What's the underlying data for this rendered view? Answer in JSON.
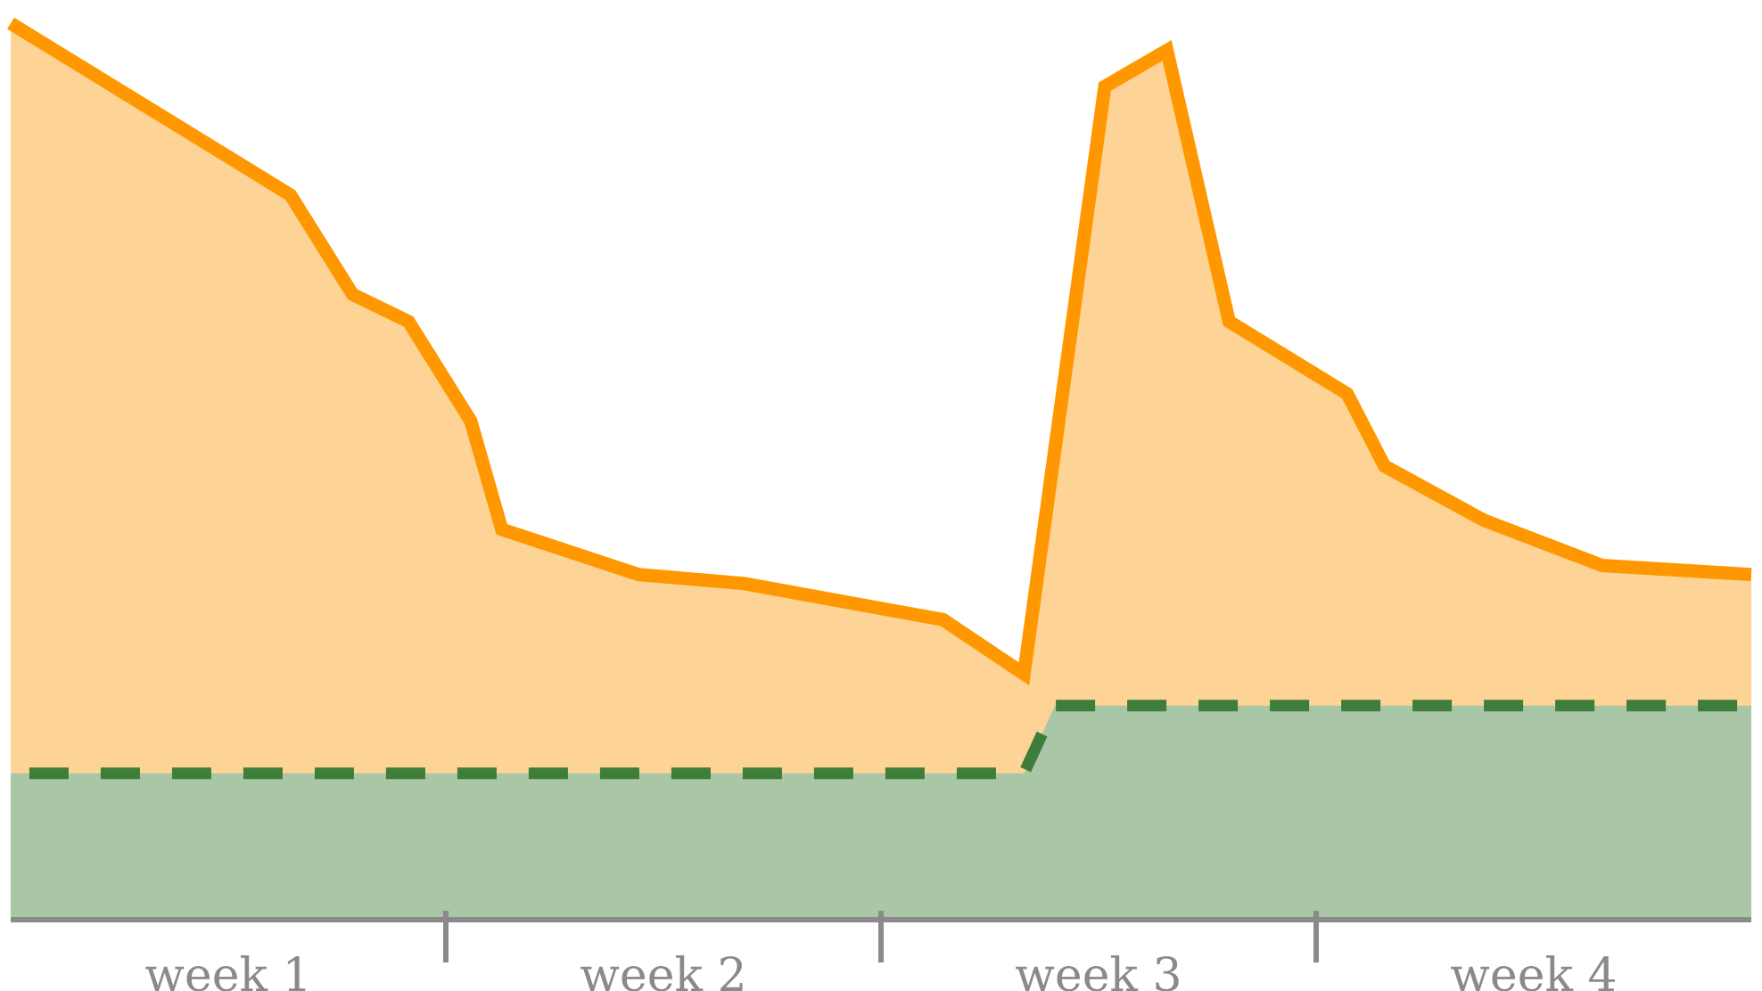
{
  "colors": {
    "orange_line": "#ff9800",
    "orange_fill": "#fdd396",
    "green_line": "#3e7d3a",
    "green_fill": "#a9c6a6",
    "axis": "#8a8a8a",
    "background": "#ffffff"
  },
  "chart_data": {
    "type": "area",
    "title": "",
    "xlabel": "",
    "ylabel": "",
    "xlim": [
      0,
      28
    ],
    "ylim": [
      0,
      100
    ],
    "grid": false,
    "legend": "none",
    "categories": [
      "week 1",
      "week 2",
      "week 3",
      "week 4"
    ],
    "category_boundaries": [
      0,
      7,
      14,
      21,
      28
    ],
    "series": [
      {
        "style": "solid-area",
        "x": [
          0,
          4.5,
          5.5,
          6.4,
          7.4,
          7.9,
          10.1,
          11.8,
          15.0,
          16.3,
          17.6,
          18.6,
          19.6,
          21.5,
          22.1,
          23.7,
          25.6,
          28
        ],
        "y": [
          99,
          80,
          69,
          66,
          55,
          43,
          38,
          37,
          33,
          27,
          92,
          96,
          66,
          58,
          50,
          44,
          39,
          38
        ]
      },
      {
        "style": "dashed-area",
        "x": [
          0.3,
          16.3,
          16.8,
          28
        ],
        "y": [
          16,
          16,
          23.5,
          23.5
        ]
      }
    ]
  }
}
